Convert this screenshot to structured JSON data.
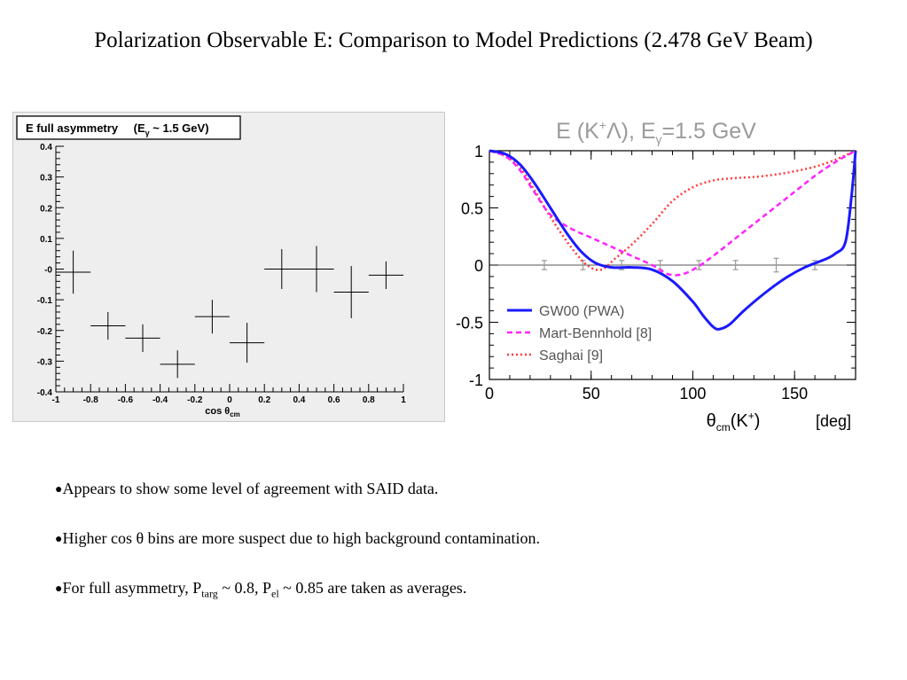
{
  "slide": {
    "title": "Polarization Observable E: Comparison to Model Predictions (2.478 GeV Beam)"
  },
  "bullets": [
    {
      "text": "Appears to show some level of agreement with SAID data."
    },
    {
      "text": "Higher cos θ bins are more suspect due to high background contamination."
    },
    {
      "pre": "For full asymmetry, P",
      "sub1": "targ",
      "mid": " ~ 0.8, P",
      "sub2": "el",
      "post": " ~ 0.85 are taken as averages."
    }
  ],
  "colors": {
    "gw": "#1a1aff",
    "mart": "#ff22ff",
    "saghai": "#ff3b3b",
    "left_bg": "#eeeeee"
  },
  "chart_data": [
    {
      "type": "scatter",
      "title": "E full asymmetry",
      "title_suffix": "(E",
      "title_sub": "γ",
      "title_tail": " ~ 1.5 GeV)",
      "xlabel": "cos θ",
      "xlabel_sub": "cm",
      "xlim": [
        -1,
        1
      ],
      "ylim": [
        -0.4,
        0.4
      ],
      "xticks": [
        "-1",
        "-0.8",
        "-0.6",
        "-0.4",
        "-0.2",
        "0",
        "0.2",
        "0.4",
        "0.6",
        "0.8",
        "1"
      ],
      "yticks": [
        "-0.4",
        "-0.3",
        "-0.2",
        "-0.1",
        "-0",
        "0.1",
        "0.2",
        "0.3",
        "0.4"
      ],
      "points": [
        {
          "x": -0.9,
          "y": -0.01,
          "xerr": 0.1,
          "yerr": 0.07
        },
        {
          "x": -0.7,
          "y": -0.185,
          "xerr": 0.1,
          "yerr": 0.045
        },
        {
          "x": -0.5,
          "y": -0.225,
          "xerr": 0.1,
          "yerr": 0.045
        },
        {
          "x": -0.3,
          "y": -0.31,
          "xerr": 0.1,
          "yerr": 0.045
        },
        {
          "x": -0.1,
          "y": -0.155,
          "xerr": 0.1,
          "yerr": 0.055
        },
        {
          "x": 0.1,
          "y": -0.24,
          "xerr": 0.1,
          "yerr": 0.065
        },
        {
          "x": 0.3,
          "y": 0.0,
          "xerr": 0.1,
          "yerr": 0.065
        },
        {
          "x": 0.5,
          "y": 0.0,
          "xerr": 0.1,
          "yerr": 0.075
        },
        {
          "x": 0.7,
          "y": -0.075,
          "xerr": 0.1,
          "yerr": 0.085
        },
        {
          "x": 0.9,
          "y": -0.02,
          "xerr": 0.1,
          "yerr": 0.045
        }
      ]
    },
    {
      "type": "line",
      "title": "E (K",
      "title_sup": "+",
      "title_mid": "Λ),  E",
      "title_sub": "γ",
      "title_tail": "=1.5 GeV",
      "xlabel": "θ",
      "xlabel_sub": "cm",
      "xlabel_tail": "(K",
      "xlabel_sup": "+",
      "xlabel_end": ")",
      "xunit": "[deg]",
      "xlim": [
        0,
        180
      ],
      "ylim": [
        -1,
        1
      ],
      "xticks": [
        {
          "v": 0,
          "label": "0"
        },
        {
          "v": 50,
          "label": "50"
        },
        {
          "v": 100,
          "label": "100"
        },
        {
          "v": 150,
          "label": "150"
        }
      ],
      "yticks": [
        {
          "v": 1,
          "label": "1"
        },
        {
          "v": 0.5,
          "label": "0.5"
        },
        {
          "v": 0,
          "label": "0"
        },
        {
          "v": -0.5,
          "label": "-0.5"
        },
        {
          "v": -1,
          "label": "-1"
        }
      ],
      "series": [
        {
          "name": "GW00 (PWA)",
          "style": "solid",
          "x": [
            0,
            8,
            15,
            22,
            30,
            38,
            45,
            52,
            60,
            70,
            80,
            90,
            100,
            105,
            110,
            113,
            118,
            125,
            135,
            145,
            155,
            165,
            170,
            175,
            178,
            180
          ],
          "y": [
            1.0,
            0.97,
            0.88,
            0.72,
            0.5,
            0.28,
            0.12,
            0.02,
            -0.02,
            -0.02,
            -0.04,
            -0.14,
            -0.32,
            -0.44,
            -0.54,
            -0.56,
            -0.52,
            -0.4,
            -0.25,
            -0.12,
            -0.02,
            0.05,
            0.1,
            0.2,
            0.6,
            1.0
          ]
        },
        {
          "name": "Mart-Bennhold [8]",
          "style": "dashed",
          "x": [
            0,
            8,
            15,
            22,
            30,
            40,
            50,
            60,
            70,
            80,
            88,
            95,
            102,
            110,
            120,
            130,
            140,
            150,
            160,
            170,
            180
          ],
          "y": [
            1.0,
            0.95,
            0.83,
            0.64,
            0.44,
            0.32,
            0.24,
            0.16,
            0.08,
            0.0,
            -0.08,
            -0.08,
            -0.02,
            0.08,
            0.22,
            0.36,
            0.5,
            0.64,
            0.78,
            0.9,
            1.0
          ]
        },
        {
          "name": "Saghai [9]",
          "style": "dotted",
          "x": [
            0,
            8,
            15,
            22,
            30,
            40,
            48,
            55,
            62,
            70,
            80,
            90,
            100,
            110,
            120,
            130,
            140,
            150,
            160,
            170,
            180
          ],
          "y": [
            1.0,
            0.95,
            0.85,
            0.66,
            0.42,
            0.16,
            0.0,
            -0.04,
            0.06,
            0.18,
            0.36,
            0.56,
            0.68,
            0.74,
            0.76,
            0.77,
            0.79,
            0.82,
            0.86,
            0.92,
            1.0
          ]
        }
      ],
      "data_points": [
        {
          "x": 27,
          "y": 0.0,
          "err": 0.04
        },
        {
          "x": 46,
          "y": 0.0,
          "err": 0.04
        },
        {
          "x": 65,
          "y": 0.0,
          "err": 0.04
        },
        {
          "x": 84,
          "y": 0.0,
          "err": 0.04
        },
        {
          "x": 103,
          "y": 0.0,
          "err": 0.04
        },
        {
          "x": 121,
          "y": 0.0,
          "err": 0.04
        },
        {
          "x": 141,
          "y": 0.0,
          "err": 0.06
        },
        {
          "x": 160,
          "y": 0.0,
          "err": 0.04
        }
      ]
    }
  ]
}
